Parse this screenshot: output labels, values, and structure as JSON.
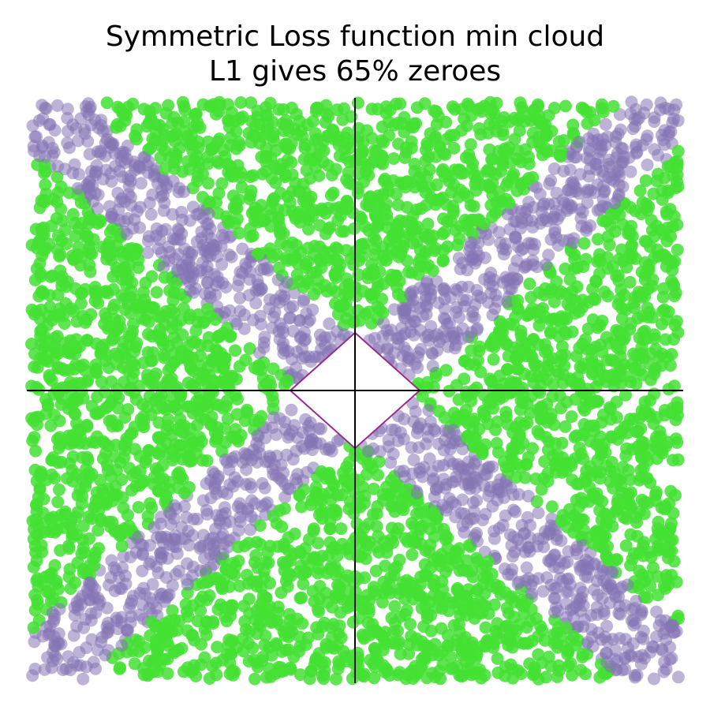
{
  "chart_data": {
    "type": "scatter",
    "title_lines": [
      "Symmetric Loss function min cloud",
      "L1 gives 65% zeroes"
    ],
    "xlim": [
      -1,
      1
    ],
    "ylim": [
      -1,
      1
    ],
    "grid": false,
    "axes_through_origin": true,
    "series": [
      {
        "region": "minimum-on-axis (zero)",
        "color": "#44e034",
        "alpha": 0.85
      },
      {
        "region": "minimum-at-corner (non-zero)",
        "color": "#8575b5",
        "alpha": 0.55
      }
    ],
    "constraint": {
      "shape": "L1 ball",
      "radius": 0.2,
      "color": "#9b2a8f"
    },
    "notes": "Two-color uniform point cloud; corner band along diagonals |x| ~ |y|"
  }
}
